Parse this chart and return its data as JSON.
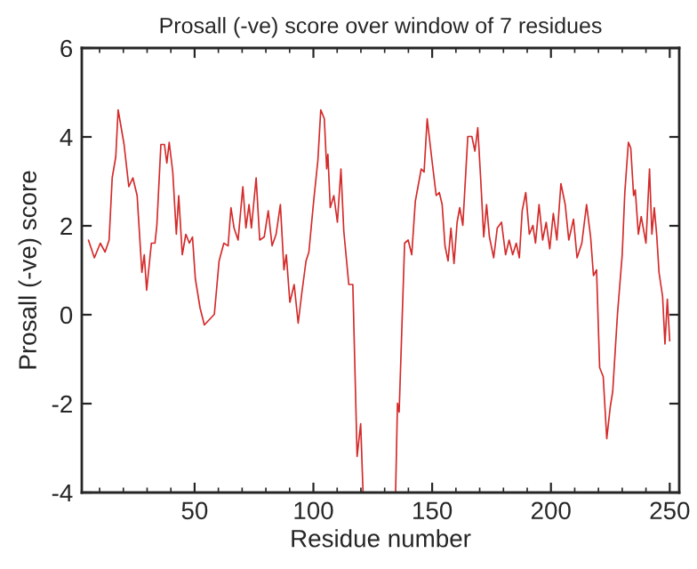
{
  "chart_data": {
    "type": "line",
    "title": "Prosall (-ve) score over window of 7 residues",
    "xlabel": "Residue number",
    "ylabel": "Prosall (-ve) score",
    "xlim": [
      2.5,
      254
    ],
    "xticks": [
      50,
      100,
      150,
      200,
      250
    ],
    "ylim": [
      -4,
      6
    ],
    "yticks": [
      -4,
      -2,
      0,
      2,
      4,
      6
    ],
    "marker": "none",
    "line_style": "solid",
    "series": [
      {
        "color": "#d42a2a",
        "x": [
          5.3,
          7.8,
          10.3,
          12.3,
          14.0,
          15.3,
          16.8,
          17.8,
          20.3,
          22.3,
          24.0,
          25.8,
          27.8,
          28.8,
          29.8,
          31.8,
          33.3,
          34.1,
          35.8,
          37.3,
          38.3,
          39.3,
          40.8,
          42.3,
          43.3,
          44.8,
          46.3,
          47.8,
          49.1,
          50.3,
          52.3,
          54.1,
          58.3,
          60.3,
          62.3,
          64.1,
          65.3,
          66.6,
          68.3,
          70.3,
          71.6,
          72.9,
          73.9,
          75.9,
          77.4,
          79.3,
          81.0,
          82.6,
          84.3,
          86.1,
          87.6,
          88.6,
          90.1,
          91.9,
          93.6,
          95.1,
          96.9,
          98.1,
          100.1,
          101.9,
          103.1,
          104.6,
          105.6,
          106.1,
          107.1,
          108.6,
          110.1,
          111.6,
          112.8,
          114.9,
          116.6,
          118.4,
          119.9,
          120.9,
          127.0,
          134.6,
          135.4,
          136.1,
          138.4,
          139.9,
          141.4,
          142.9,
          145.4,
          146.6,
          147.9,
          149.9,
          151.7,
          153.0,
          154.2,
          155.4,
          156.7,
          157.9,
          159.2,
          160.5,
          161.6,
          162.9,
          165.0,
          166.7,
          168.0,
          169.2,
          170.4,
          171.7,
          172.9,
          174.1,
          175.9,
          177.4,
          179.2,
          180.9,
          182.4,
          183.9,
          185.4,
          186.7,
          187.9,
          189.4,
          190.9,
          192.4,
          193.5,
          195.0,
          196.5,
          198.0,
          199.5,
          201.0,
          202.5,
          204.2,
          206.0,
          207.5,
          209.5,
          211.0,
          213.0,
          215.0,
          216.7,
          217.9,
          219.2,
          220.5,
          222.0,
          223.5,
          225.0,
          226.0,
          228.0,
          230.0,
          231.1,
          232.6,
          233.6,
          234.8,
          235.5,
          236.8,
          238.0,
          240.0,
          241.5,
          242.5,
          243.5,
          244.5,
          245.5,
          247.0,
          248.0,
          249.0,
          250.0
        ],
        "values": [
          1.68,
          1.28,
          1.61,
          1.41,
          1.68,
          3.08,
          3.55,
          4.61,
          3.83,
          2.88,
          3.08,
          2.68,
          0.95,
          1.35,
          0.55,
          1.61,
          1.61,
          2.01,
          3.83,
          3.83,
          3.41,
          3.88,
          3.21,
          1.81,
          2.68,
          1.35,
          1.81,
          1.61,
          1.75,
          0.81,
          0.15,
          -0.23,
          0.01,
          1.21,
          1.61,
          1.55,
          2.41,
          1.95,
          1.68,
          2.88,
          1.95,
          2.48,
          1.95,
          3.08,
          1.68,
          1.75,
          2.34,
          1.55,
          1.81,
          2.48,
          1.01,
          1.35,
          0.28,
          0.68,
          -0.19,
          0.48,
          1.21,
          1.41,
          2.55,
          3.48,
          4.61,
          4.41,
          3.28,
          3.61,
          2.41,
          2.68,
          2.08,
          3.28,
          1.88,
          0.68,
          0.68,
          -3.19,
          -2.45,
          -4,
          null,
          -4,
          -1.99,
          -2.19,
          1.61,
          1.68,
          1.35,
          2.55,
          3.28,
          3.21,
          4.41,
          3.48,
          2.68,
          2.75,
          2.48,
          1.55,
          1.21,
          1.95,
          1.15,
          2.08,
          2.41,
          2.01,
          4.01,
          4.01,
          3.68,
          4.21,
          3.08,
          1.75,
          2.48,
          1.75,
          1.28,
          1.95,
          2.08,
          1.35,
          1.68,
          1.35,
          1.61,
          1.28,
          2.34,
          2.75,
          1.81,
          2.01,
          1.61,
          2.48,
          1.68,
          2.08,
          1.48,
          2.28,
          1.68,
          2.95,
          2.48,
          1.68,
          2.15,
          1.28,
          1.61,
          2.48,
          1.75,
          0.88,
          1.01,
          -1.19,
          -1.39,
          -2.79,
          -2.06,
          -1.73,
          0.01,
          1.35,
          2.75,
          3.88,
          3.75,
          2.68,
          2.81,
          1.81,
          2.21,
          1.61,
          3.28,
          1.81,
          2.41,
          1.81,
          0.95,
          0.41,
          -0.66,
          0.35,
          -0.59
        ]
      }
    ]
  }
}
